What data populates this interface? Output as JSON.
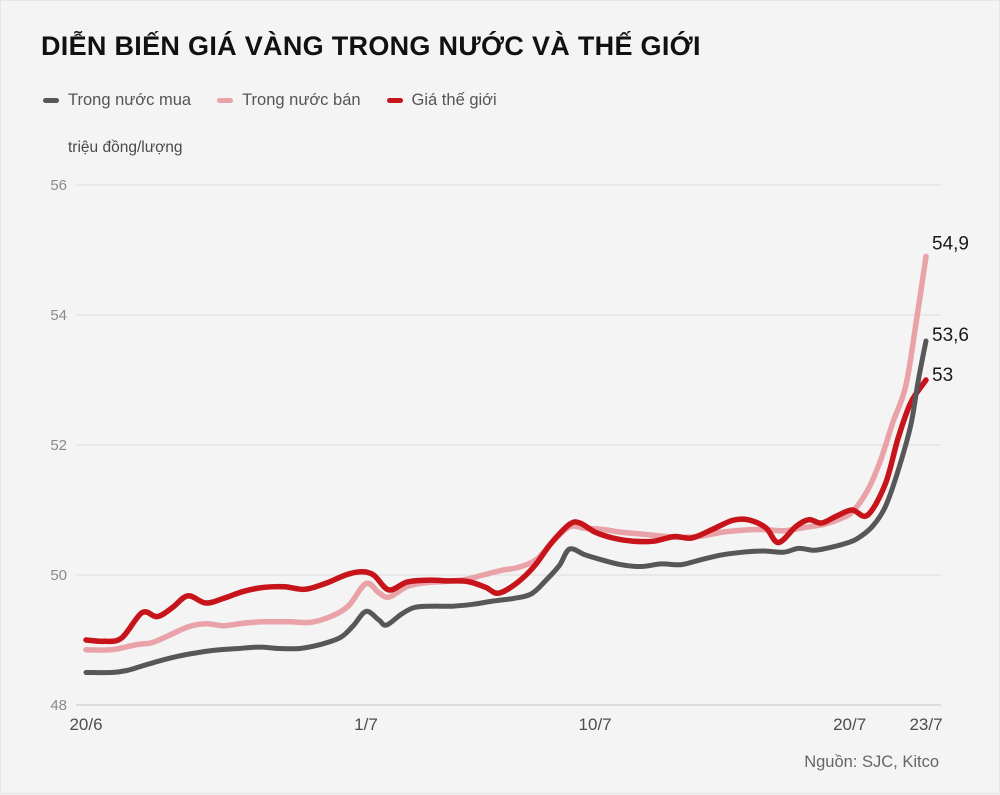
{
  "title": "DIỄN BIẾN GIÁ VÀNG TRONG NƯỚC VÀ THẾ GIỚI",
  "unit_label": "triệu đồng/lượng",
  "source": "Nguồn: SJC, Kitco",
  "colors": {
    "background": "#f4f4f4",
    "grid": "#dcdcdc",
    "axis_bottom": "#c6c6c6",
    "domestic_buy": "#57575a",
    "domestic_sell": "#e9a2a8",
    "world": "#c7131a"
  },
  "chart_data": {
    "type": "line",
    "title": "DIỄN BIẾN GIÁ VÀNG TRONG NƯỚC VÀ THẾ GIỚI",
    "xlabel": "",
    "ylabel": "triệu đồng/lượng",
    "ylim": [
      48,
      56
    ],
    "grid": true,
    "legend_position": "top-left",
    "y_ticks": [
      "48",
      "50",
      "52",
      "54",
      "56"
    ],
    "x_ticks": [
      {
        "label": "20/6",
        "day": 0
      },
      {
        "label": "1/7",
        "day": 11
      },
      {
        "label": "10/7",
        "day": 20
      },
      {
        "label": "20/7",
        "day": 30
      },
      {
        "label": "23/7",
        "day": 33
      }
    ],
    "x_range_days": [
      0,
      33
    ],
    "series": [
      {
        "id": "trong-nuoc-mua",
        "name": "Trong nước mua",
        "color": "#57575a",
        "stroke_width": 5,
        "end_label": "53,6",
        "end_value": 53.6,
        "points": [
          [
            0,
            48.5
          ],
          [
            1.0,
            48.5
          ],
          [
            1.6,
            48.53
          ],
          [
            2.2,
            48.6
          ],
          [
            2.9,
            48.68
          ],
          [
            3.6,
            48.75
          ],
          [
            4.3,
            48.8
          ],
          [
            5.0,
            48.84
          ],
          [
            6.0,
            48.87
          ],
          [
            6.8,
            48.89
          ],
          [
            7.6,
            48.87
          ],
          [
            8.4,
            48.87
          ],
          [
            9.2,
            48.93
          ],
          [
            10.0,
            49.04
          ],
          [
            10.5,
            49.22
          ],
          [
            11.0,
            49.44
          ],
          [
            11.5,
            49.31
          ],
          [
            11.8,
            49.23
          ],
          [
            12.4,
            49.4
          ],
          [
            12.9,
            49.5
          ],
          [
            13.6,
            49.52
          ],
          [
            14.4,
            49.52
          ],
          [
            15.2,
            49.55
          ],
          [
            16.0,
            49.6
          ],
          [
            16.8,
            49.64
          ],
          [
            17.5,
            49.71
          ],
          [
            18.1,
            49.93
          ],
          [
            18.6,
            50.15
          ],
          [
            19.0,
            50.4
          ],
          [
            19.6,
            50.31
          ],
          [
            20.2,
            50.24
          ],
          [
            21.0,
            50.16
          ],
          [
            21.8,
            50.13
          ],
          [
            22.6,
            50.17
          ],
          [
            23.4,
            50.16
          ],
          [
            24.2,
            50.24
          ],
          [
            25.0,
            50.31
          ],
          [
            25.8,
            50.35
          ],
          [
            26.6,
            50.37
          ],
          [
            27.4,
            50.35
          ],
          [
            28.0,
            50.41
          ],
          [
            28.6,
            50.38
          ],
          [
            29.2,
            50.42
          ],
          [
            29.8,
            50.48
          ],
          [
            30.3,
            50.56
          ],
          [
            30.9,
            50.75
          ],
          [
            31.4,
            51.05
          ],
          [
            31.9,
            51.6
          ],
          [
            32.4,
            52.3
          ],
          [
            32.7,
            53.0
          ],
          [
            33.0,
            53.6
          ]
        ]
      },
      {
        "id": "trong-nuoc-ban",
        "name": "Trong nước bán",
        "color": "#e9a2a8",
        "stroke_width": 5.5,
        "end_label": "54,9",
        "end_value": 54.9,
        "points": [
          [
            0,
            48.85
          ],
          [
            1.0,
            48.85
          ],
          [
            2.0,
            48.93
          ],
          [
            2.6,
            48.96
          ],
          [
            3.2,
            49.06
          ],
          [
            4.0,
            49.2
          ],
          [
            4.7,
            49.25
          ],
          [
            5.4,
            49.22
          ],
          [
            6.2,
            49.26
          ],
          [
            7.0,
            49.28
          ],
          [
            8.0,
            49.28
          ],
          [
            8.8,
            49.27
          ],
          [
            9.6,
            49.36
          ],
          [
            10.3,
            49.52
          ],
          [
            11.0,
            49.87
          ],
          [
            11.5,
            49.73
          ],
          [
            11.9,
            49.66
          ],
          [
            12.6,
            49.82
          ],
          [
            13.3,
            49.88
          ],
          [
            14.1,
            49.9
          ],
          [
            14.9,
            49.93
          ],
          [
            15.6,
            50.0
          ],
          [
            16.3,
            50.07
          ],
          [
            17.0,
            50.12
          ],
          [
            17.7,
            50.24
          ],
          [
            18.3,
            50.5
          ],
          [
            19.0,
            50.74
          ],
          [
            19.6,
            50.72
          ],
          [
            20.3,
            50.7
          ],
          [
            21.0,
            50.66
          ],
          [
            21.8,
            50.63
          ],
          [
            22.6,
            50.6
          ],
          [
            23.4,
            50.58
          ],
          [
            24.2,
            50.6
          ],
          [
            25.0,
            50.66
          ],
          [
            25.8,
            50.69
          ],
          [
            26.6,
            50.7
          ],
          [
            27.4,
            50.68
          ],
          [
            28.2,
            50.73
          ],
          [
            29.0,
            50.78
          ],
          [
            29.6,
            50.86
          ],
          [
            30.1,
            50.97
          ],
          [
            30.7,
            51.3
          ],
          [
            31.2,
            51.75
          ],
          [
            31.7,
            52.35
          ],
          [
            32.2,
            52.9
          ],
          [
            32.6,
            53.85
          ],
          [
            33.0,
            54.9
          ]
        ]
      },
      {
        "id": "gia-the-gioi",
        "name": "Giá thế giới",
        "color": "#c7131a",
        "stroke_width": 5.5,
        "end_label": "53",
        "end_value": 53.0,
        "points": [
          [
            0,
            49.0
          ],
          [
            0.7,
            48.98
          ],
          [
            1.4,
            49.03
          ],
          [
            2.2,
            49.42
          ],
          [
            2.8,
            49.36
          ],
          [
            3.4,
            49.5
          ],
          [
            4.0,
            49.68
          ],
          [
            4.7,
            49.57
          ],
          [
            5.4,
            49.64
          ],
          [
            6.2,
            49.75
          ],
          [
            7.0,
            49.81
          ],
          [
            7.8,
            49.82
          ],
          [
            8.6,
            49.78
          ],
          [
            9.4,
            49.87
          ],
          [
            10.2,
            50.0
          ],
          [
            10.8,
            50.05
          ],
          [
            11.3,
            50.0
          ],
          [
            11.9,
            49.77
          ],
          [
            12.6,
            49.89
          ],
          [
            13.4,
            49.92
          ],
          [
            14.2,
            49.91
          ],
          [
            15.0,
            49.9
          ],
          [
            15.7,
            49.81
          ],
          [
            16.2,
            49.72
          ],
          [
            16.9,
            49.87
          ],
          [
            17.6,
            50.13
          ],
          [
            18.3,
            50.5
          ],
          [
            19.0,
            50.78
          ],
          [
            19.4,
            50.8
          ],
          [
            20.0,
            50.66
          ],
          [
            20.7,
            50.57
          ],
          [
            21.5,
            50.52
          ],
          [
            22.3,
            50.52
          ],
          [
            23.1,
            50.59
          ],
          [
            23.8,
            50.57
          ],
          [
            24.6,
            50.7
          ],
          [
            25.4,
            50.84
          ],
          [
            26.0,
            50.85
          ],
          [
            26.7,
            50.73
          ],
          [
            27.2,
            50.5
          ],
          [
            27.9,
            50.75
          ],
          [
            28.4,
            50.85
          ],
          [
            28.9,
            50.8
          ],
          [
            29.5,
            50.91
          ],
          [
            30.1,
            51.0
          ],
          [
            30.7,
            50.92
          ],
          [
            31.4,
            51.4
          ],
          [
            31.9,
            52.1
          ],
          [
            32.4,
            52.65
          ],
          [
            33.0,
            53.0
          ]
        ]
      }
    ]
  }
}
